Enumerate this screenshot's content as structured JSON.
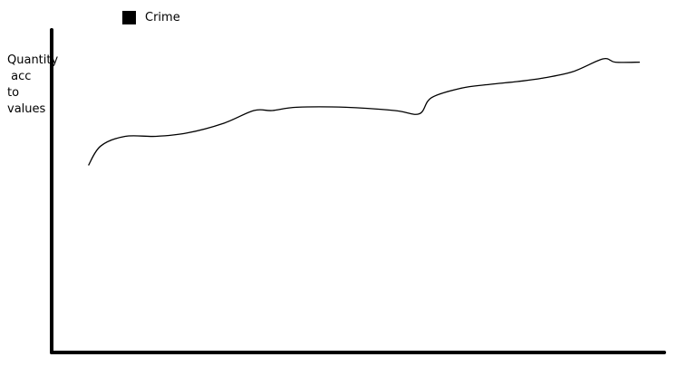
{
  "chart_data": {
    "type": "line",
    "title": "",
    "xlabel": "",
    "ylabel_lines": [
      "Quantity",
      " acc",
      "to",
      "values"
    ],
    "legend": [
      {
        "name": "Crime",
        "color": "#000000"
      }
    ],
    "legend_position": "top-left",
    "grid": false,
    "xlim": [
      0,
      100
    ],
    "ylim": [
      0,
      100
    ],
    "series": [
      {
        "name": "Crime",
        "color": "#000000",
        "x": [
          6,
          8,
          12,
          17,
          22,
          28,
          33,
          36,
          40,
          48,
          56,
          60,
          62,
          67,
          71,
          76,
          80,
          85,
          90,
          92,
          96
        ],
        "y": [
          58,
          64,
          67,
          67,
          68,
          71,
          75,
          75,
          76,
          76,
          75,
          74,
          79,
          82,
          83,
          84,
          85,
          87,
          91,
          90,
          90
        ]
      }
    ]
  }
}
